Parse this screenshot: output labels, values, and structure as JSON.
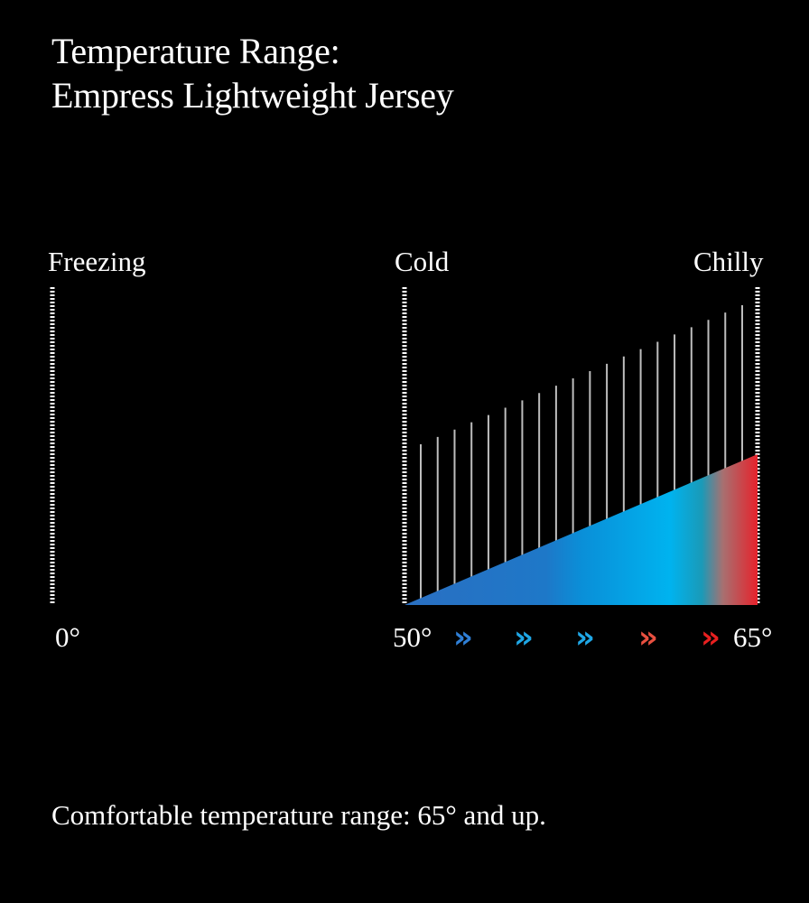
{
  "title": {
    "line1": "Temperature Range:",
    "line2": "Empress Lightweight Jersey"
  },
  "scale_labels": {
    "freezing": "Freezing",
    "cold": "Cold",
    "chilly": "Chilly"
  },
  "tick_labels": {
    "zero": "0°",
    "fifty": "50°",
    "sixtyfive": "65°"
  },
  "arrows": [
    {
      "glyph": "»",
      "color": "#2f7fd6"
    },
    {
      "glyph": "»",
      "color": "#1fa7e6"
    },
    {
      "glyph": "»",
      "color": "#1fa7e6"
    },
    {
      "glyph": "»",
      "color": "#e85040"
    },
    {
      "glyph": "»",
      "color": "#e82020"
    }
  ],
  "footer": "Comfortable temperature range: 65° and up.",
  "colors": {
    "background": "#000000",
    "gradient_start": "#2a6fc2",
    "gradient_mid": "#00b3ef",
    "gradient_end": "#e8202a",
    "lines": "#bdbdbd"
  },
  "chart_data": {
    "type": "area",
    "x_range": [
      50,
      65
    ],
    "series": [
      {
        "x": [
          50,
          65
        ],
        "values": [
          0,
          1
        ]
      }
    ],
    "vertical_lines_count": 20
  }
}
